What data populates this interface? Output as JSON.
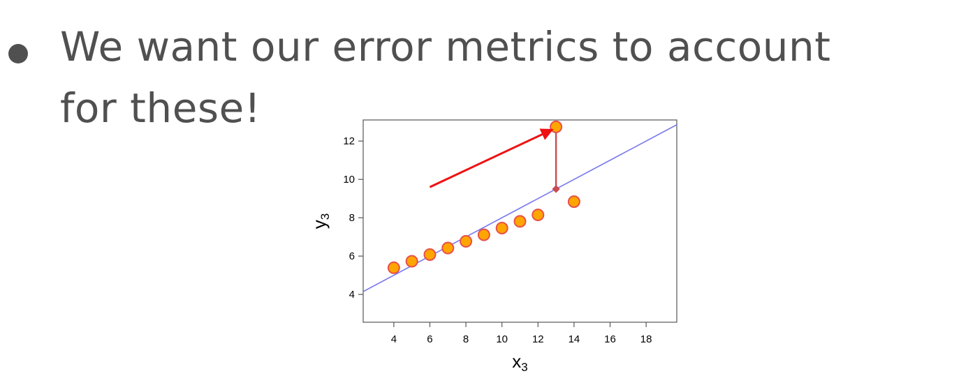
{
  "slide": {
    "bullet_line1": "We want our error metrics to account",
    "bullet_line2": "for these!"
  },
  "chart_data": {
    "type": "scatter",
    "xlabel_base": "x",
    "xlabel_sub": "3",
    "ylabel_base": "y",
    "ylabel_sub": "3",
    "xlim": [
      2.3,
      19.7
    ],
    "ylim": [
      2.55,
      13.1
    ],
    "x_ticks": [
      4,
      6,
      8,
      10,
      12,
      14,
      16,
      18
    ],
    "y_ticks": [
      4,
      6,
      8,
      10,
      12
    ],
    "grid": false,
    "points": [
      {
        "x": 4,
        "y": 5.39
      },
      {
        "x": 5,
        "y": 5.73
      },
      {
        "x": 6,
        "y": 6.08
      },
      {
        "x": 7,
        "y": 6.42
      },
      {
        "x": 8,
        "y": 6.77
      },
      {
        "x": 9,
        "y": 7.11
      },
      {
        "x": 10,
        "y": 7.46
      },
      {
        "x": 11,
        "y": 7.81
      },
      {
        "x": 12,
        "y": 8.15
      },
      {
        "x": 13,
        "y": 12.74
      },
      {
        "x": 14,
        "y": 8.84
      }
    ],
    "fit_line": {
      "intercept": 3.0,
      "slope": 0.5
    },
    "residual": {
      "x": 13,
      "y_from": 9.5,
      "y_to": 12.74
    },
    "arrow": {
      "from": {
        "x": 6,
        "y": 9.6
      },
      "to": {
        "x": 12.8,
        "y": 12.6
      }
    },
    "colors": {
      "point_fill": "#FFA500",
      "point_stroke": "#E8504A",
      "fit_line": "#7777EE",
      "residual": "#C94B50",
      "arrow": "#EE1111"
    }
  }
}
